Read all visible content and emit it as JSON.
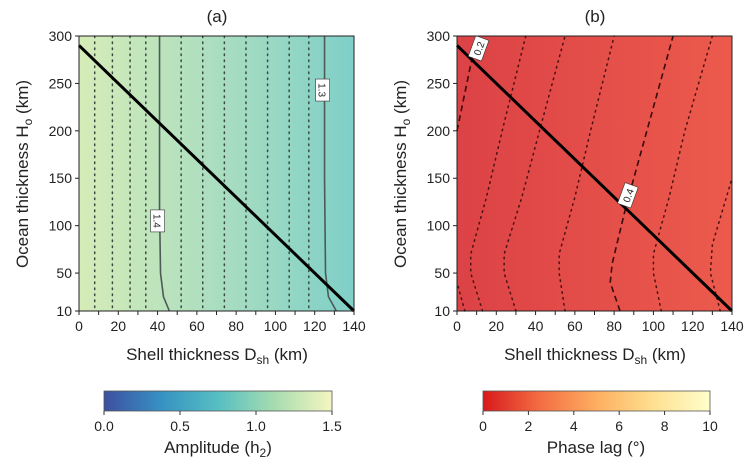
{
  "chart_data": [
    {
      "type": "heatmap",
      "title": "(a)",
      "xlabel": "Shell thickness D",
      "xlabel_sub": "sh",
      "xlabel_unit": " (km)",
      "ylabel": "Ocean thickness H",
      "ylabel_sub": "o",
      "ylabel_unit": " (km)",
      "xlim": [
        0,
        140
      ],
      "ylim": [
        10,
        300
      ],
      "xticks": [
        0,
        10,
        20,
        30,
        40,
        50,
        60,
        70,
        80,
        90,
        100,
        110,
        120,
        130,
        140
      ],
      "yticks": [
        10,
        50,
        100,
        150,
        200,
        250,
        300
      ],
      "field_gradient": {
        "x": [
          0,
          140
        ],
        "colors": [
          "#d6ecb8",
          "#7fcfc8"
        ]
      },
      "contours": [
        {
          "level": "1.4",
          "style": "solid",
          "points": [
            [
              41,
              300
            ],
            [
              41,
              120
            ],
            [
              41.5,
              50
            ],
            [
              43,
              25
            ],
            [
              46,
              10
            ]
          ],
          "label_at": [
            40,
            105
          ]
        },
        {
          "level": "1.3",
          "style": "solid",
          "points": [
            [
              125,
              300
            ],
            [
              125,
              150
            ],
            [
              125.5,
              50
            ],
            [
              127,
              25
            ],
            [
              131,
              10
            ]
          ],
          "label_at": [
            124,
            243
          ]
        }
      ],
      "dotted_x": [
        8,
        17,
        26,
        34,
        52,
        63,
        74,
        85,
        96,
        107,
        117
      ],
      "regime_line": [
        [
          0,
          290
        ],
        [
          140,
          10
        ]
      ],
      "colorbar": {
        "label": "Amplitude (h",
        "label_sub": "2",
        "label_unit": ")",
        "ticks": [
          "0.0",
          "0.5",
          "1.0",
          "1.5"
        ],
        "range": [
          0,
          1.5
        ],
        "colors": [
          "#3e4fa1",
          "#3791c3",
          "#56bfc2",
          "#a8dcb0",
          "#f5f6c1"
        ]
      }
    },
    {
      "type": "heatmap",
      "title": "(b)",
      "xlabel": "Shell thickness D",
      "xlabel_sub": "sh",
      "xlabel_unit": " (km)",
      "ylabel": "Ocean thickness H",
      "ylabel_sub": "o",
      "ylabel_unit": " (km)",
      "xlim": [
        0,
        140
      ],
      "ylim": [
        10,
        300
      ],
      "xticks": [
        0,
        10,
        20,
        30,
        40,
        50,
        60,
        70,
        80,
        90,
        100,
        110,
        120,
        130,
        140
      ],
      "yticks": [
        10,
        50,
        100,
        150,
        200,
        250,
        300
      ],
      "field_gradient": {
        "x": [
          0,
          140
        ],
        "colors": [
          "#dc4246",
          "#ec5a4c"
        ]
      },
      "contours": [
        {
          "level": "0.2",
          "style": "dashed",
          "points": [
            [
              0,
              200
            ],
            [
              5,
              250
            ],
            [
              10,
              300
            ]
          ],
          "label_at": [
            11,
            287
          ]
        },
        {
          "level": "0.4",
          "style": "dashed",
          "points": [
            [
              83,
              10
            ],
            [
              78,
              40
            ],
            [
              79,
              60
            ],
            [
              86,
              120
            ],
            [
              94,
              180
            ],
            [
              110,
              300
            ]
          ],
          "label_at": [
            87,
            132
          ]
        }
      ],
      "dotted_curves": [
        [
          [
            4,
            10
          ],
          [
            0,
            40
          ]
        ],
        [
          [
            13,
            10
          ],
          [
            7,
            50
          ],
          [
            7,
            70
          ],
          [
            15,
            130
          ],
          [
            23,
            200
          ],
          [
            35,
            300
          ]
        ],
        [
          [
            30,
            10
          ],
          [
            24,
            50
          ],
          [
            24,
            70
          ],
          [
            33,
            130
          ],
          [
            42,
            200
          ],
          [
            55,
            300
          ]
        ],
        [
          [
            55,
            10
          ],
          [
            52,
            50
          ],
          [
            52,
            70
          ],
          [
            60,
            130
          ],
          [
            68,
            200
          ],
          [
            80,
            300
          ]
        ],
        [
          [
            104,
            10
          ],
          [
            100,
            50
          ],
          [
            100,
            70
          ],
          [
            108,
            130
          ],
          [
            116,
            200
          ],
          [
            130,
            300
          ]
        ],
        [
          [
            134,
            10
          ],
          [
            129,
            50
          ],
          [
            130,
            80
          ],
          [
            140,
            150
          ]
        ]
      ],
      "regime_line": [
        [
          0,
          290
        ],
        [
          140,
          10
        ]
      ],
      "colorbar": {
        "label": "Phase lag (°)",
        "ticks": [
          "0",
          "2",
          "4",
          "6",
          "8",
          "10"
        ],
        "range": [
          0,
          10
        ],
        "colors": [
          "#d7191c",
          "#f46d43",
          "#fdae61",
          "#fee090",
          "#ffffcc"
        ]
      }
    }
  ]
}
